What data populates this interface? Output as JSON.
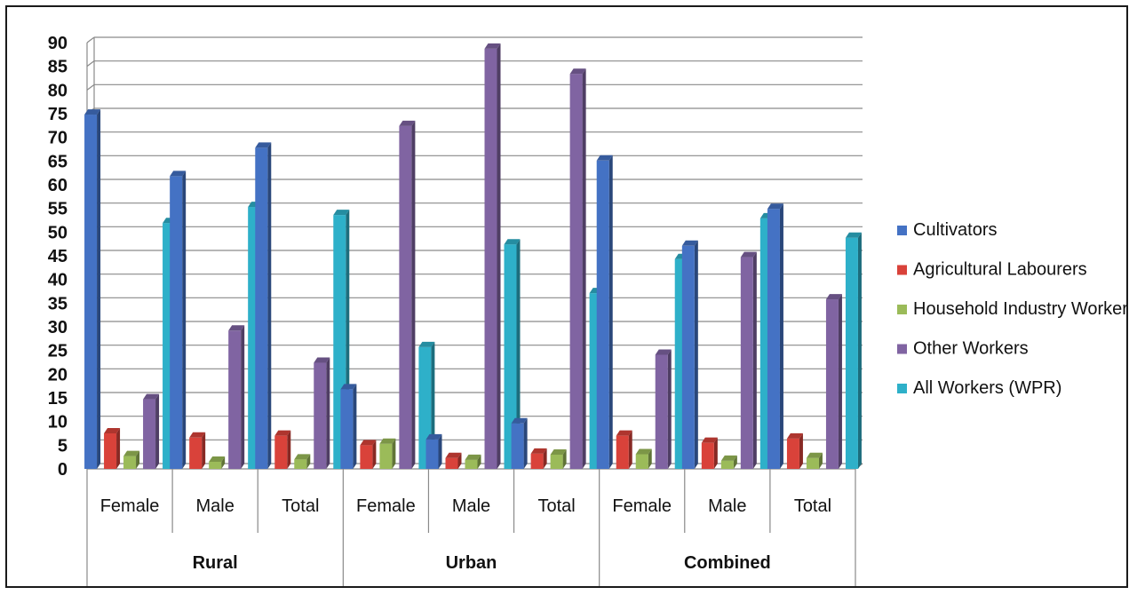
{
  "chart_data": {
    "type": "bar",
    "title": "",
    "xlabel": "",
    "ylabel": "",
    "ylim": [
      0,
      90
    ],
    "ytick_step": 5,
    "grid": true,
    "legend_position": "right",
    "groups": [
      {
        "label": "Rural",
        "categories": [
          "Female",
          "Male",
          "Total"
        ]
      },
      {
        "label": "Urban",
        "categories": [
          "Female",
          "Male",
          "Total"
        ]
      },
      {
        "label": "Combined",
        "categories": [
          "Female",
          "Male",
          "Total"
        ]
      }
    ],
    "categories": [
      "Female",
      "Male",
      "Total",
      "Female",
      "Male",
      "Total",
      "Female",
      "Male",
      "Total"
    ],
    "series": [
      {
        "name": "Cultivators",
        "color": "#4472c4",
        "values": [
          74.8,
          61.8,
          67.8,
          16.8,
          6.2,
          9.6,
          65.1,
          47.1,
          54.9
        ]
      },
      {
        "name": "Agricultural Labourers",
        "color": "#d9423a",
        "values": [
          7.5,
          6.6,
          7.0,
          5.0,
          2.3,
          3.2,
          7.0,
          5.5,
          6.4
        ]
      },
      {
        "name": "Household Industry Workers",
        "color": "#9bbb59",
        "values": [
          2.7,
          1.5,
          2.0,
          5.3,
          1.9,
          3.0,
          3.1,
          1.7,
          2.3
        ]
      },
      {
        "name": "Other Workers",
        "color": "#8064a2",
        "values": [
          14.7,
          29.2,
          22.4,
          72.4,
          88.7,
          83.4,
          24.1,
          44.7,
          35.8
        ]
      },
      {
        "name": "All Workers (WPR)",
        "color": "#2eb0c9",
        "values": [
          51.9,
          55.3,
          53.6,
          25.7,
          47.4,
          37.1,
          44.3,
          52.9,
          48.8
        ]
      }
    ]
  }
}
